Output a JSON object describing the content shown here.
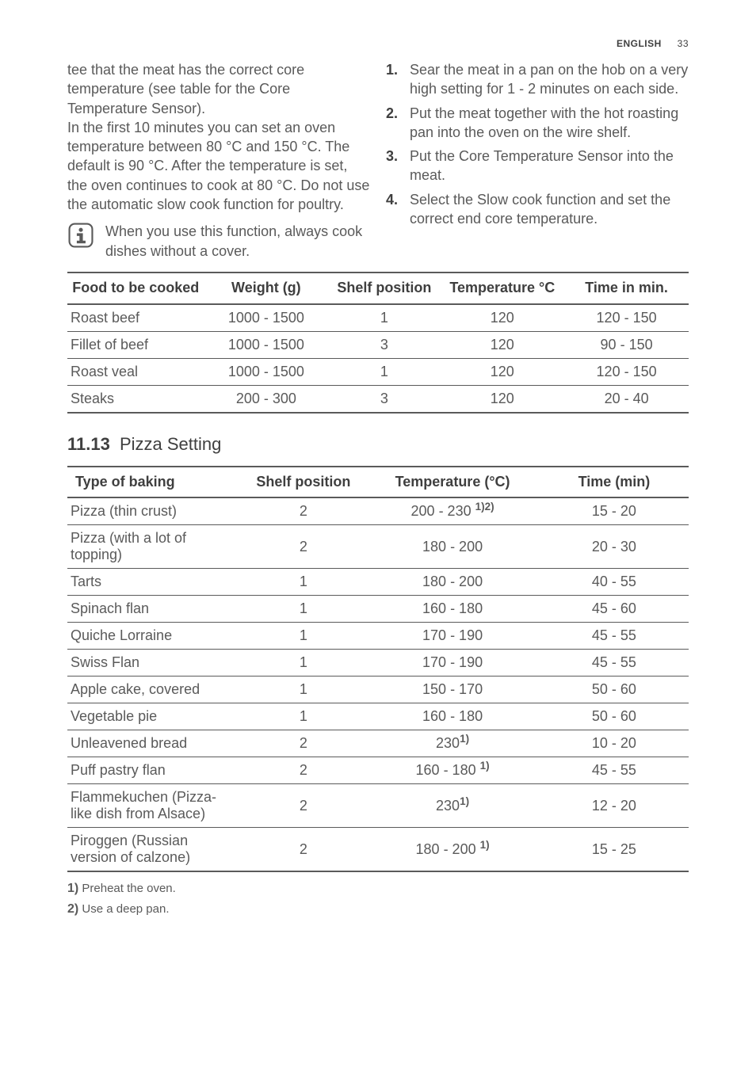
{
  "header": {
    "lang": "ENGLISH",
    "page": "33"
  },
  "leftCol": {
    "p1": "tee that the meat has the correct core temperature (see table for the Core Temperature Sensor).",
    "p2": "In the first 10 minutes you can set an oven temperature between 80 °C and 150 °C. The default is 90 °C. After the temperature is set, the oven continues to cook at 80 °C. Do not use the automatic slow cook function for poultry.",
    "info": "When you use this function, always cook dishes without a cover."
  },
  "rightCol": {
    "steps": [
      "Sear the meat in a pan on the hob on a very high setting for 1 - 2 minutes on each side.",
      "Put the meat together with the hot roasting pan into the oven on the wire shelf.",
      "Put the Core Temperature Sensor into the meat.",
      "Select the Slow cook function and set the correct end core temperature."
    ]
  },
  "table1": {
    "headers": {
      "c1": "Food to be cooked",
      "c2": "Weight (g)",
      "c3": "Shelf position",
      "c4": "Temperature °C",
      "c5": "Time in min."
    },
    "rows": [
      {
        "c1": "Roast beef",
        "c2": "1000 - 1500",
        "c3": "1",
        "c4": "120",
        "c5": "120 - 150"
      },
      {
        "c1": "Fillet of beef",
        "c2": "1000 - 1500",
        "c3": "3",
        "c4": "120",
        "c5": "90 - 150"
      },
      {
        "c1": "Roast veal",
        "c2": "1000 - 1500",
        "c3": "1",
        "c4": "120",
        "c5": "120 - 150"
      },
      {
        "c1": "Steaks",
        "c2": "200 - 300",
        "c3": "3",
        "c4": "120",
        "c5": "20 - 40"
      }
    ]
  },
  "section2": {
    "num": "11.13",
    "title": "Pizza Setting"
  },
  "table2": {
    "headers": {
      "c1": "Type of baking",
      "c2": "Shelf position",
      "c3": "Temperature (°C)",
      "c4": "Time (min)"
    },
    "rows": [
      {
        "c1": "Pizza (thin crust)",
        "c2": "2",
        "c3": "200 - 230 ",
        "c3s": "1)2)",
        "c4": "15 - 20"
      },
      {
        "c1": "Pizza (with a lot of topping)",
        "c2": "2",
        "c3": "180 - 200",
        "c3s": "",
        "c4": "20 - 30"
      },
      {
        "c1": "Tarts",
        "c2": "1",
        "c3": "180 - 200",
        "c3s": "",
        "c4": "40 - 55"
      },
      {
        "c1": "Spinach flan",
        "c2": "1",
        "c3": "160 - 180",
        "c3s": "",
        "c4": "45 - 60"
      },
      {
        "c1": "Quiche Lorraine",
        "c2": "1",
        "c3": "170 - 190",
        "c3s": "",
        "c4": "45 - 55"
      },
      {
        "c1": "Swiss Flan",
        "c2": "1",
        "c3": "170 - 190",
        "c3s": "",
        "c4": "45 - 55"
      },
      {
        "c1": "Apple cake, covered",
        "c2": "1",
        "c3": "150 - 170",
        "c3s": "",
        "c4": "50 - 60"
      },
      {
        "c1": "Vegetable pie",
        "c2": "1",
        "c3": "160 - 180",
        "c3s": "",
        "c4": "50 - 60"
      },
      {
        "c1": "Unleavened bread",
        "c2": "2",
        "c3": "230",
        "c3s": "1)",
        "c4": "10 - 20"
      },
      {
        "c1": "Puff pastry flan",
        "c2": "2",
        "c3": "160 - 180 ",
        "c3s": "1)",
        "c4": "45 - 55"
      },
      {
        "c1": "Flammekuchen (Pizza-like dish from Alsace)",
        "c2": "2",
        "c3": "230",
        "c3s": "1)",
        "c4": "12 - 20"
      },
      {
        "c1": "Piroggen (Russian version of calzone)",
        "c2": "2",
        "c3": "180 - 200 ",
        "c3s": "1)",
        "c4": "15 - 25"
      }
    ]
  },
  "footnotes": [
    {
      "k": "1)",
      "t": " Preheat the oven."
    },
    {
      "k": "2)",
      "t": " Use a deep pan."
    }
  ]
}
